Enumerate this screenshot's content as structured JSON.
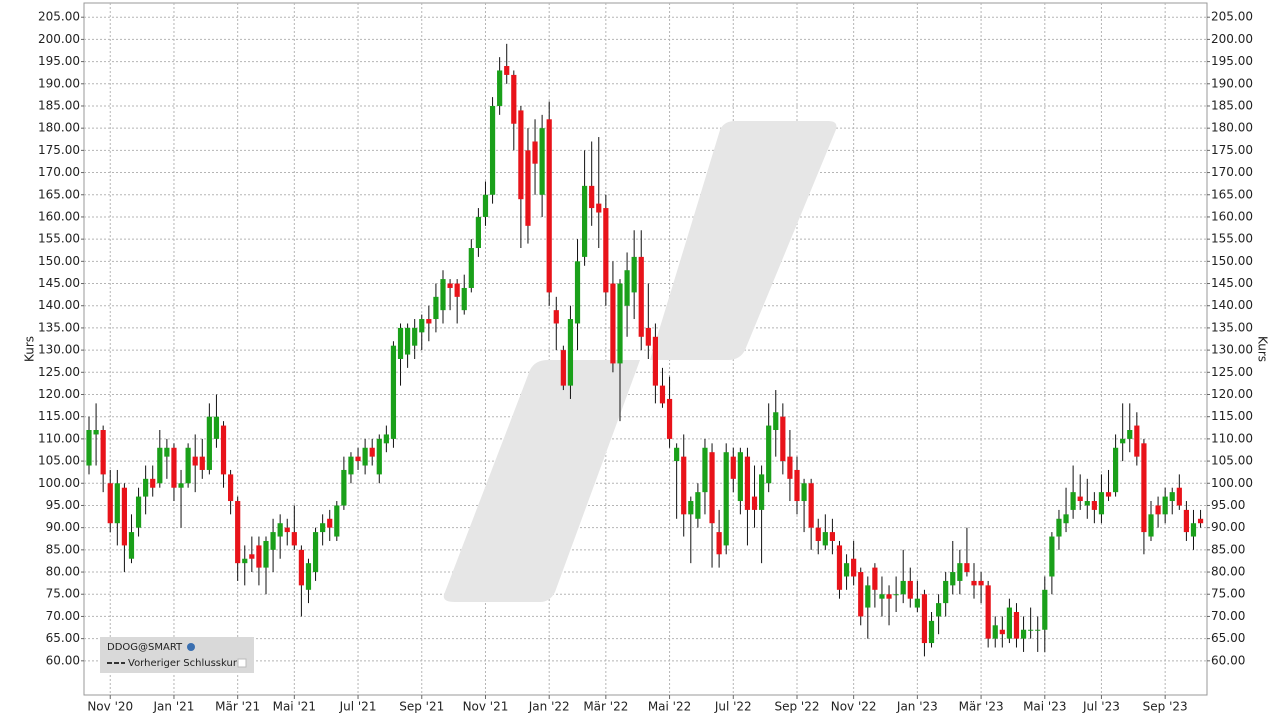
{
  "chart_data": {
    "type": "candlestick",
    "y_label": "Kurs",
    "y2_label": "Kurs",
    "ylim": [
      52.3,
      208.2
    ],
    "yticks": [
      {
        "value": 60,
        "label": "60.00"
      },
      {
        "value": 65,
        "label": "65.00"
      },
      {
        "value": 70,
        "label": "70.00"
      },
      {
        "value": 75,
        "label": "75.00"
      },
      {
        "value": 80,
        "label": "80.00"
      },
      {
        "value": 85,
        "label": "85.00"
      },
      {
        "value": 90,
        "label": "90.00"
      },
      {
        "value": 95,
        "label": "95.00"
      },
      {
        "value": 100,
        "label": "100.00"
      },
      {
        "value": 105,
        "label": "105.00"
      },
      {
        "value": 110,
        "label": "110.00"
      },
      {
        "value": 115,
        "label": "115.00"
      },
      {
        "value": 120,
        "label": "120.00"
      },
      {
        "value": 125,
        "label": "125.00"
      },
      {
        "value": 130,
        "label": "130.00"
      },
      {
        "value": 135,
        "label": "135.00"
      },
      {
        "value": 140,
        "label": "140.00"
      },
      {
        "value": 145,
        "label": "145.00"
      },
      {
        "value": 150,
        "label": "150.00"
      },
      {
        "value": 155,
        "label": "155.00"
      },
      {
        "value": 160,
        "label": "160.00"
      },
      {
        "value": 165,
        "label": "165.00"
      },
      {
        "value": 170,
        "label": "170.00"
      },
      {
        "value": 175,
        "label": "175.00"
      },
      {
        "value": 180,
        "label": "180.00"
      },
      {
        "value": 185,
        "label": "185.00"
      },
      {
        "value": 190,
        "label": "190.00"
      },
      {
        "value": 195,
        "label": "195.00"
      },
      {
        "value": 200,
        "label": "200.00"
      },
      {
        "value": 205,
        "label": "205.00"
      }
    ],
    "grid": true,
    "up_color": "#1aa01a",
    "down_color": "#e8131a",
    "categories": [
      null,
      null,
      null,
      "Nov '20",
      null,
      null,
      null,
      null,
      null,
      null,
      null,
      null,
      "Jan '21",
      null,
      null,
      null,
      null,
      null,
      null,
      null,
      null,
      "Mär '21",
      null,
      null,
      null,
      null,
      null,
      null,
      null,
      "Mai '21",
      null,
      null,
      null,
      null,
      null,
      null,
      null,
      null,
      "Jul '21",
      null,
      null,
      null,
      null,
      null,
      null,
      null,
      null,
      "Sep '21",
      null,
      null,
      null,
      null,
      null,
      null,
      null,
      null,
      "Nov '21",
      null,
      null,
      null,
      null,
      null,
      null,
      null,
      null,
      "Jan '22",
      null,
      null,
      null,
      null,
      null,
      null,
      null,
      "Mär '22",
      null,
      null,
      null,
      null,
      null,
      null,
      null,
      null,
      "Mai '22",
      null,
      null,
      null,
      null,
      null,
      null,
      null,
      null,
      "Jul '22",
      null,
      null,
      null,
      null,
      null,
      null,
      null,
      null,
      "Sep '22",
      null,
      null,
      null,
      null,
      null,
      null,
      null,
      "Nov '22",
      null,
      null,
      null,
      null,
      null,
      null,
      null,
      null,
      "Jan '23",
      null,
      null,
      null,
      null,
      null,
      null,
      null,
      null,
      "Mär '23",
      null,
      null,
      null,
      null,
      null,
      null,
      null,
      null,
      "Mai '23",
      null,
      null,
      null,
      null,
      null,
      null,
      null,
      "Jul '23",
      null,
      null,
      null,
      null,
      null,
      null,
      null,
      null,
      "Sep '23",
      null,
      null,
      null,
      null,
      null
    ],
    "series": [
      {
        "name": "DDOG@SMART",
        "open": [
          104,
          111,
          112,
          100,
          91,
          99,
          83,
          90,
          97,
          101,
          100,
          106,
          108,
          99,
          100,
          106,
          106,
          103,
          110,
          113,
          102,
          96,
          82,
          84,
          86,
          81,
          85,
          88,
          90,
          89,
          85,
          76,
          80,
          89,
          92,
          88,
          95,
          102,
          106,
          104,
          108,
          102,
          109,
          110,
          128,
          129,
          131,
          134,
          137,
          137,
          139,
          145,
          145,
          139,
          144,
          153,
          160,
          165,
          185,
          194,
          192,
          184,
          175,
          177,
          165,
          182,
          139,
          130,
          122,
          136,
          151,
          167,
          163,
          162,
          145,
          127,
          140,
          143,
          151,
          135,
          133,
          122,
          119,
          105,
          106,
          93,
          92,
          98,
          107,
          89,
          86,
          106,
          96,
          106,
          97,
          94,
          100,
          112,
          115,
          106,
          103,
          96,
          100,
          90,
          86,
          89,
          86,
          79,
          83,
          80,
          72,
          81,
          74,
          75,
          75,
          75,
          78,
          72,
          75,
          64,
          70,
          73,
          77,
          78,
          82,
          78,
          78,
          77,
          65,
          67,
          65,
          71,
          65,
          67,
          67,
          67,
          79,
          88,
          91,
          94,
          97,
          95,
          96,
          93,
          98,
          98,
          109,
          110,
          113,
          109,
          88,
          95,
          93,
          96,
          99,
          94,
          88,
          92
        ],
        "high": [
          115,
          118,
          113,
          103,
          103,
          100,
          93,
          99,
          104,
          104,
          112,
          110,
          109,
          103,
          109,
          111,
          110,
          118,
          120,
          114,
          103,
          97,
          86,
          88,
          88,
          88,
          92,
          93,
          92,
          95,
          86,
          83,
          90,
          93,
          94,
          96,
          106,
          107,
          108,
          110,
          110,
          111,
          113,
          132,
          136,
          136,
          137,
          138,
          140,
          145,
          148,
          146,
          146,
          147,
          155,
          162,
          168,
          187,
          196,
          199,
          193,
          185,
          180,
          182,
          183,
          186,
          142,
          131,
          140,
          155,
          175,
          177,
          178,
          165,
          150,
          146,
          152,
          157,
          157,
          145,
          136,
          126,
          124,
          109,
          111,
          97,
          100,
          110,
          109,
          94,
          109,
          108,
          108,
          108,
          104,
          104,
          118,
          121,
          118,
          112,
          106,
          101,
          101,
          92,
          93,
          92,
          87,
          84,
          87,
          81,
          79,
          82,
          79,
          77,
          79,
          85,
          81,
          78,
          76,
          71,
          75,
          80,
          87,
          85,
          90,
          82,
          80,
          78,
          70,
          70,
          74,
          73,
          70,
          72,
          70,
          79,
          89,
          94,
          99,
          104,
          102,
          101,
          98,
          102,
          103,
          111,
          118,
          118,
          116,
          110,
          96,
          97,
          99,
          99,
          102,
          96,
          94,
          94
        ],
        "low": [
          102,
          104,
          98,
          89,
          86,
          80,
          82,
          88,
          93,
          97,
          99,
          101,
          96,
          90,
          99,
          98,
          101,
          102,
          108,
          99,
          93,
          78,
          77,
          80,
          77,
          75,
          80,
          83,
          86,
          85,
          70,
          73,
          78,
          86,
          87,
          87,
          94,
          100,
          103,
          102,
          104,
          100,
          107,
          108,
          122,
          126,
          128,
          130,
          132,
          134,
          136,
          139,
          136,
          138,
          143,
          151,
          158,
          163,
          183,
          190,
          175,
          153,
          154,
          165,
          160,
          140,
          130,
          121,
          119,
          130,
          149,
          158,
          153,
          140,
          125,
          114,
          133,
          137,
          130,
          128,
          118,
          117,
          108,
          92,
          88,
          82,
          90,
          93,
          81,
          81,
          84,
          98,
          93,
          86,
          90,
          82,
          98,
          106,
          102,
          96,
          93,
          89,
          85,
          84,
          85,
          84,
          74,
          76,
          77,
          68,
          65,
          72,
          70,
          68,
          71,
          73,
          72,
          71,
          61,
          63,
          66,
          70,
          75,
          75,
          79,
          74,
          73,
          63,
          63,
          63,
          64,
          63,
          62,
          65,
          62,
          62,
          75,
          85,
          89,
          92,
          94,
          92,
          91,
          91,
          96,
          97,
          105,
          107,
          104,
          84,
          87,
          90,
          91,
          93,
          94,
          87,
          85,
          90
        ],
        "close": [
          112,
          112,
          102,
          91,
          100,
          86,
          89,
          97,
          101,
          99,
          108,
          108,
          99,
          100,
          108,
          104,
          103,
          115,
          115,
          102,
          96,
          82,
          83,
          83,
          81,
          87,
          89,
          91,
          89,
          86,
          77,
          82,
          89,
          91,
          90,
          95,
          103,
          106,
          105,
          108,
          106,
          110,
          111,
          131,
          135,
          135,
          135,
          137,
          136,
          142,
          146,
          144,
          142,
          144,
          153,
          160,
          165,
          185,
          193,
          192,
          181,
          164,
          158,
          172,
          180,
          143,
          136,
          122,
          137,
          150,
          167,
          162,
          161,
          143,
          127,
          145,
          148,
          151,
          133,
          131,
          122,
          118,
          110,
          108,
          93,
          96,
          98,
          108,
          91,
          84,
          107,
          101,
          107,
          94,
          94,
          102,
          113,
          116,
          105,
          101,
          96,
          100,
          90,
          87,
          89,
          87,
          76,
          82,
          79,
          70,
          77,
          76,
          75,
          74,
          75,
          78,
          74,
          74,
          64,
          69,
          73,
          78,
          80,
          82,
          80,
          77,
          77,
          65,
          68,
          66,
          72,
          65,
          67,
          67,
          67,
          76,
          88,
          92,
          93,
          98,
          96,
          96,
          94,
          98,
          97,
          108,
          110,
          112,
          106,
          89,
          93,
          93,
          97,
          98,
          95,
          89,
          91,
          91
        ]
      },
      {
        "name": "Vorheriger Schlusskurs",
        "style": "dashed"
      }
    ]
  }
}
